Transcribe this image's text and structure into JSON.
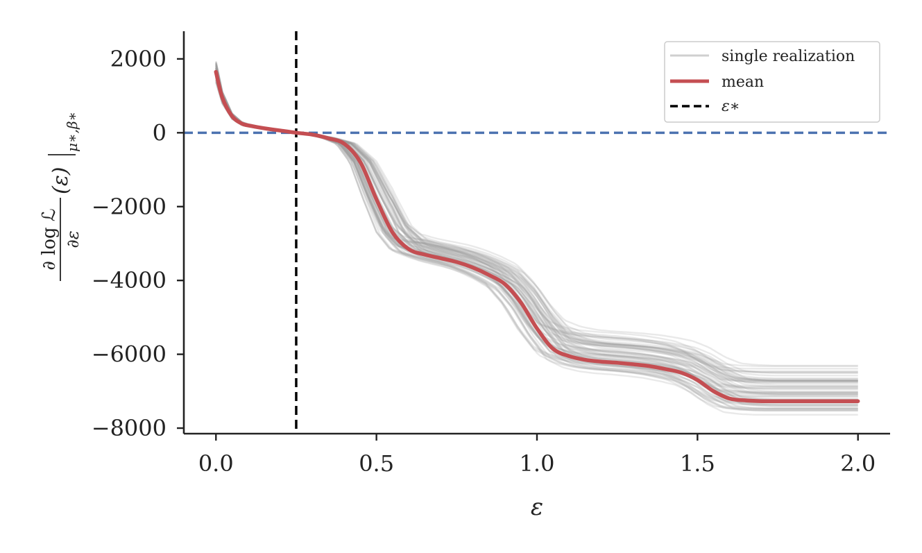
{
  "chart_data": {
    "type": "line",
    "xlabel": "ε",
    "ylabel": {
      "numerator": "∂ log ℒ",
      "denominator": "∂ε",
      "middle": "(ε)",
      "subscript": "μ∗,β∗"
    },
    "xlim": [
      -0.1,
      2.1
    ],
    "ylim": [
      -8150,
      2750
    ],
    "x_ticks": [
      {
        "value": 0.0,
        "label": "0.0"
      },
      {
        "value": 0.5,
        "label": "0.5"
      },
      {
        "value": 1.0,
        "label": "1.0"
      },
      {
        "value": 1.5,
        "label": "1.5"
      },
      {
        "value": 2.0,
        "label": "2.0"
      }
    ],
    "y_ticks": [
      {
        "value": 2000,
        "label": "2000"
      },
      {
        "value": 0,
        "label": "0"
      },
      {
        "value": -2000,
        "label": "−2000"
      },
      {
        "value": -4000,
        "label": "−4000"
      },
      {
        "value": -6000,
        "label": "−6000"
      },
      {
        "value": -8000,
        "label": "−8000"
      }
    ],
    "legend": {
      "position": "top-right",
      "entries": [
        {
          "label": "single realization",
          "color": "#bfbfbf",
          "style": "solid-thin"
        },
        {
          "label": "mean",
          "color": "#c44e52",
          "style": "solid-thick"
        },
        {
          "label": "ε∗",
          "color": "#000000",
          "style": "dashed"
        }
      ]
    },
    "series": [
      {
        "name": "mean",
        "color": "#c44e52",
        "x": [
          0.0,
          0.02,
          0.05,
          0.08,
          0.1,
          0.15,
          0.2,
          0.25,
          0.3,
          0.35,
          0.4,
          0.45,
          0.5,
          0.55,
          0.6,
          0.65,
          0.7,
          0.75,
          0.8,
          0.85,
          0.9,
          0.95,
          1.0,
          1.05,
          1.1,
          1.15,
          1.2,
          1.25,
          1.3,
          1.35,
          1.4,
          1.45,
          1.5,
          1.55,
          1.6,
          1.65,
          1.7,
          1.75,
          1.8,
          1.85,
          1.9,
          1.95,
          2.0
        ],
        "y": [
          1650,
          950,
          450,
          250,
          200,
          120,
          60,
          0,
          -50,
          -150,
          -300,
          -800,
          -1800,
          -2700,
          -3150,
          -3300,
          -3400,
          -3500,
          -3650,
          -3850,
          -4100,
          -4600,
          -5300,
          -5850,
          -6050,
          -6150,
          -6200,
          -6230,
          -6270,
          -6320,
          -6400,
          -6500,
          -6700,
          -7000,
          -7200,
          -7250,
          -7270,
          -7270,
          -7270,
          -7270,
          -7270,
          -7270,
          -7270
        ]
      }
    ],
    "realizations": {
      "label": "single realization",
      "color": "#999999",
      "count": 60,
      "final_value_range": [
        -7650,
        -6300
      ]
    },
    "reference_lines": [
      {
        "orientation": "vertical",
        "value": 0.25,
        "label": "ε∗",
        "color": "#000000",
        "style": "dashed"
      },
      {
        "orientation": "horizontal",
        "value": 0,
        "color": "#4c72b0",
        "style": "dashed"
      }
    ]
  }
}
